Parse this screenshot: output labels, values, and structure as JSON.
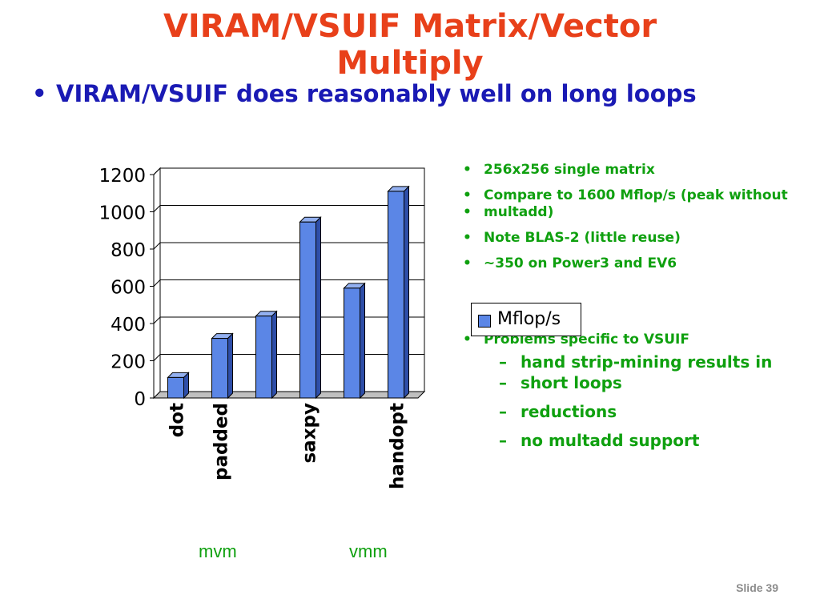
{
  "slide": {
    "title_line1": "VIRAM/VSUIF Matrix/Vector",
    "title_line2": "Multiply",
    "main_bullet": "VIRAM/VSUIF does reasonably well on long loops",
    "notes": [
      "256x256 single matrix",
      "Compare to 1600 Mflop/s (peak without",
      "multadd)",
      "Note BLAS-2 (little reuse)",
      "~350 on Power3 and EV6",
      "Problems specific to VSUIF"
    ],
    "sub_notes": [
      "hand strip-mining results in",
      "short loops",
      "reductions",
      "no multadd support"
    ],
    "group_labels": [
      "mvm",
      "vmm"
    ],
    "slide_number": "Slide 39",
    "accent_colors": {
      "title": "#e8401a",
      "bullet": "#1a1ab4",
      "notes": "#0fa00f",
      "bar": "#5b86e6"
    }
  },
  "chart_data": {
    "type": "bar",
    "categories": [
      "dot",
      "padded",
      "",
      "saxpy",
      "",
      "handopt"
    ],
    "series": [
      {
        "name": "Mflop/s",
        "values": [
          110,
          320,
          440,
          945,
          590,
          1110
        ]
      }
    ],
    "ylim": [
      0,
      1200
    ],
    "yticks": [
      0,
      200,
      400,
      600,
      800,
      1000,
      1200
    ],
    "legend": "right",
    "grid": true
  }
}
